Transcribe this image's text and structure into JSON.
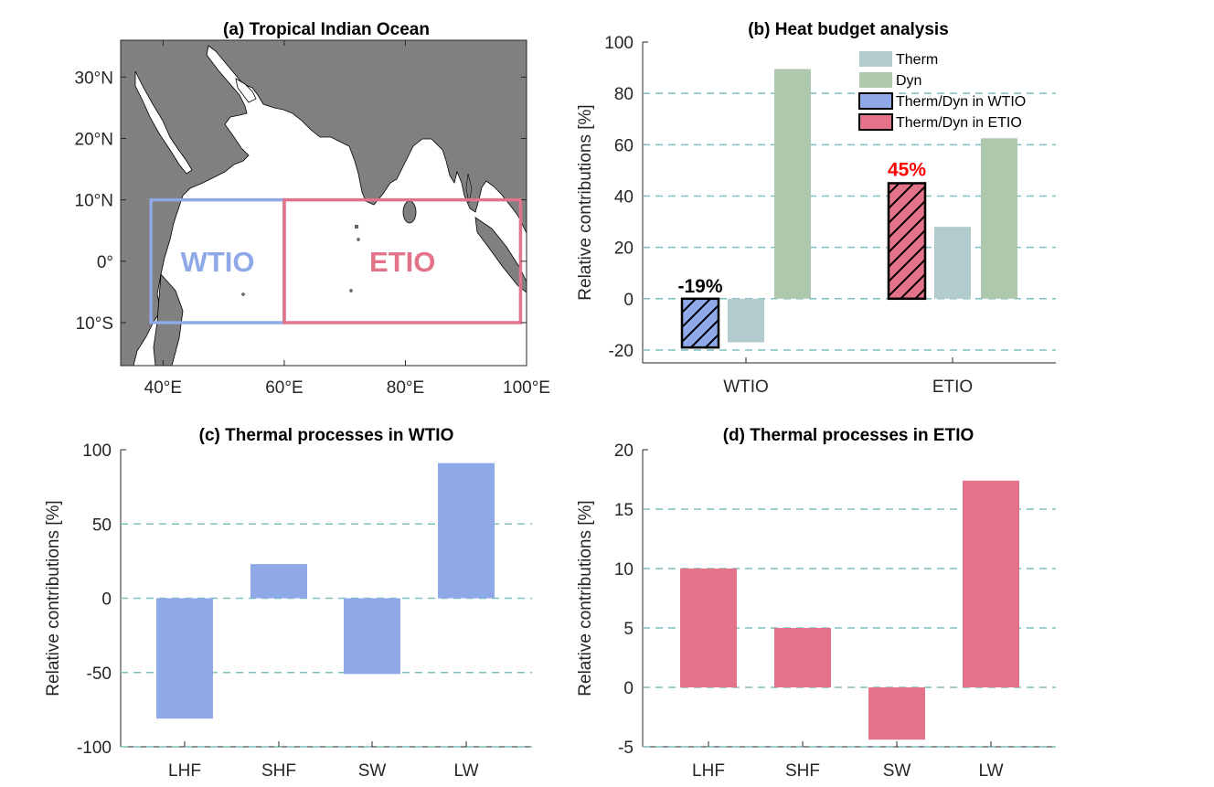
{
  "colors": {
    "wtio": "#8ea8e8",
    "etio": "#e27389",
    "therm": "#b2cbcc",
    "dyn": "#aec8ad",
    "grid": "#7fbfbf",
    "land": "#808080",
    "annot_etio": "#ff0000",
    "annot_wtio": "#000000"
  },
  "map": {
    "title": "(a) Tropical Indian Ocean",
    "lon_ticks": [
      "40°E",
      "60°E",
      "80°E",
      "100°E"
    ],
    "lat_ticks": [
      "30°N",
      "20°N",
      "10°N",
      "0°",
      "10°S"
    ],
    "xlim": [
      33,
      100
    ],
    "ylim": [
      -17,
      36
    ],
    "regions": [
      {
        "name": "WTIO",
        "lon": [
          38,
          60
        ],
        "lat": [
          -10,
          10
        ]
      },
      {
        "name": "ETIO",
        "lon": [
          60,
          99
        ],
        "lat": [
          -10,
          10
        ]
      }
    ]
  },
  "chart_data": [
    {
      "panel": "b",
      "type": "bar",
      "title": "(b) Heat budget analysis",
      "xlabel": "",
      "ylabel": "Relative contributions [%]",
      "ylim": [
        -25,
        100
      ],
      "yticks": [
        "-20",
        "0",
        "20",
        "40",
        "60",
        "80",
        "100"
      ],
      "grid": "dashed horizontal",
      "legend_position": "top-right",
      "categories": [
        "WTIO",
        "ETIO"
      ],
      "series": [
        {
          "name": "Therm/Dyn in WTIO / Therm/Dyn in ETIO",
          "values": [
            -19,
            45
          ],
          "hatched": true
        },
        {
          "name": "Therm",
          "values": [
            -17,
            28
          ]
        },
        {
          "name": "Dyn",
          "values": [
            89.5,
            62.5
          ]
        }
      ],
      "legend": [
        "Therm",
        "Dyn",
        "Therm/Dyn in WTIO",
        "Therm/Dyn in ETIO"
      ],
      "annotations": [
        "-19%",
        "45%"
      ]
    },
    {
      "panel": "c",
      "type": "bar",
      "title": "(c) Thermal processes in WTIO",
      "xlabel": "",
      "ylabel": "Relative contributions [%]",
      "ylim": [
        -100,
        100
      ],
      "yticks": [
        "-100",
        "-50",
        "0",
        "50",
        "100"
      ],
      "grid": "dashed horizontal",
      "categories": [
        "LHF",
        "SHF",
        "SW",
        "LW"
      ],
      "values": [
        -81,
        23,
        -51,
        91
      ]
    },
    {
      "panel": "d",
      "type": "bar",
      "title": "(d) Thermal processes in ETIO",
      "xlabel": "",
      "ylabel": "Relative contributions [%]",
      "ylim": [
        -5,
        20
      ],
      "yticks": [
        "-5",
        "0",
        "5",
        "10",
        "15",
        "20"
      ],
      "grid": "dashed horizontal",
      "categories": [
        "LHF",
        "SHF",
        "SW",
        "LW"
      ],
      "values": [
        10,
        5,
        -4.4,
        17.4
      ]
    }
  ]
}
